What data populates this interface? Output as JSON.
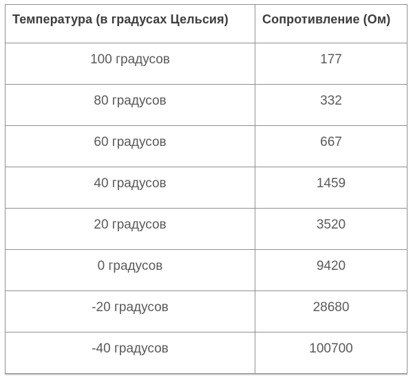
{
  "chart_data": {
    "type": "table",
    "columns": [
      "Температура (в градусах Цельсия)",
      "Сопротивление (Ом)"
    ],
    "rows": [
      [
        "100 градусов",
        "177"
      ],
      [
        "80 градусов",
        "332"
      ],
      [
        "60 градусов",
        "667"
      ],
      [
        "40 градусов",
        "1459"
      ],
      [
        "20 градусов",
        "3520"
      ],
      [
        "0 градусов",
        "9420"
      ],
      [
        "-20 градусов",
        "28680"
      ],
      [
        "-40 градусов",
        "100700"
      ]
    ],
    "temperature_values_c": [
      100,
      80,
      60,
      40,
      20,
      0,
      -20,
      -40
    ],
    "resistance_values_ohm": [
      177,
      332,
      667,
      1459,
      3520,
      9420,
      28680,
      100700
    ],
    "legend": "none",
    "grid": "full cell borders"
  },
  "colors": {
    "background": "#ffffff",
    "border": "#8f8f8f",
    "header_text": "#3d3d3d",
    "cell_text": "#595959",
    "bottom_shadow_line": "#cccccc"
  }
}
